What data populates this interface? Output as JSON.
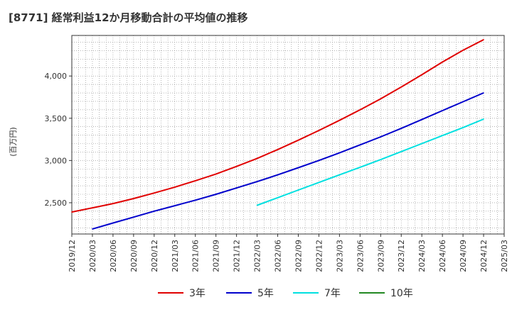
{
  "chart_data": {
    "type": "line",
    "title": "[8771]  経常利益12か月移動合計の平均値の推移",
    "ylabel": "(百万円)",
    "xlabel": "",
    "ylim": [
      2130,
      4480
    ],
    "yticks": [
      2500,
      3000,
      3500,
      4000
    ],
    "ytick_labels": [
      "2,500",
      "3,000",
      "3,500",
      "4,000"
    ],
    "xlim": [
      "2019/12",
      "2025/03"
    ],
    "x_tick_labels": [
      "2019/12",
      "2020/03",
      "2020/06",
      "2020/09",
      "2020/12",
      "2021/03",
      "2021/06",
      "2021/09",
      "2021/12",
      "2022/03",
      "2022/06",
      "2022/09",
      "2022/12",
      "2023/03",
      "2023/06",
      "2023/09",
      "2023/12",
      "2024/03",
      "2024/06",
      "2024/09",
      "2024/12",
      "2025/03"
    ],
    "grid": true,
    "legend_position": "bottom",
    "series": [
      {
        "name": "3年",
        "color": "#e00000",
        "x": [
          "2019/12",
          "2020/03",
          "2020/06",
          "2020/09",
          "2020/12",
          "2021/03",
          "2021/06",
          "2021/09",
          "2021/12",
          "2022/03",
          "2022/06",
          "2022/09",
          "2022/12",
          "2023/03",
          "2023/06",
          "2023/09",
          "2023/12",
          "2024/03",
          "2024/06",
          "2024/09",
          "2024/12"
        ],
        "values": [
          2390,
          2440,
          2490,
          2550,
          2615,
          2685,
          2760,
          2840,
          2930,
          3025,
          3130,
          3240,
          3355,
          3475,
          3600,
          3730,
          3870,
          4015,
          4165,
          4305,
          4430
        ]
      },
      {
        "name": "5年",
        "color": "#0000cc",
        "x": [
          "2020/03",
          "2020/06",
          "2020/09",
          "2020/12",
          "2021/03",
          "2021/06",
          "2021/09",
          "2021/12",
          "2022/03",
          "2022/06",
          "2022/09",
          "2022/12",
          "2023/03",
          "2023/06",
          "2023/09",
          "2023/12",
          "2024/03",
          "2024/06",
          "2024/09",
          "2024/12"
        ],
        "values": [
          2190,
          2260,
          2330,
          2400,
          2465,
          2530,
          2600,
          2675,
          2750,
          2830,
          2915,
          3000,
          3090,
          3185,
          3280,
          3380,
          3485,
          3590,
          3695,
          3800
        ]
      },
      {
        "name": "7年",
        "color": "#00e0e0",
        "x": [
          "2022/03",
          "2022/06",
          "2022/09",
          "2022/12",
          "2023/03",
          "2023/06",
          "2023/09",
          "2023/12",
          "2024/03",
          "2024/06",
          "2024/09",
          "2024/12"
        ],
        "values": [
          2470,
          2560,
          2650,
          2740,
          2830,
          2920,
          3010,
          3105,
          3200,
          3295,
          3390,
          3490
        ]
      },
      {
        "name": "10年",
        "color": "#228822",
        "x": [],
        "values": []
      }
    ]
  }
}
